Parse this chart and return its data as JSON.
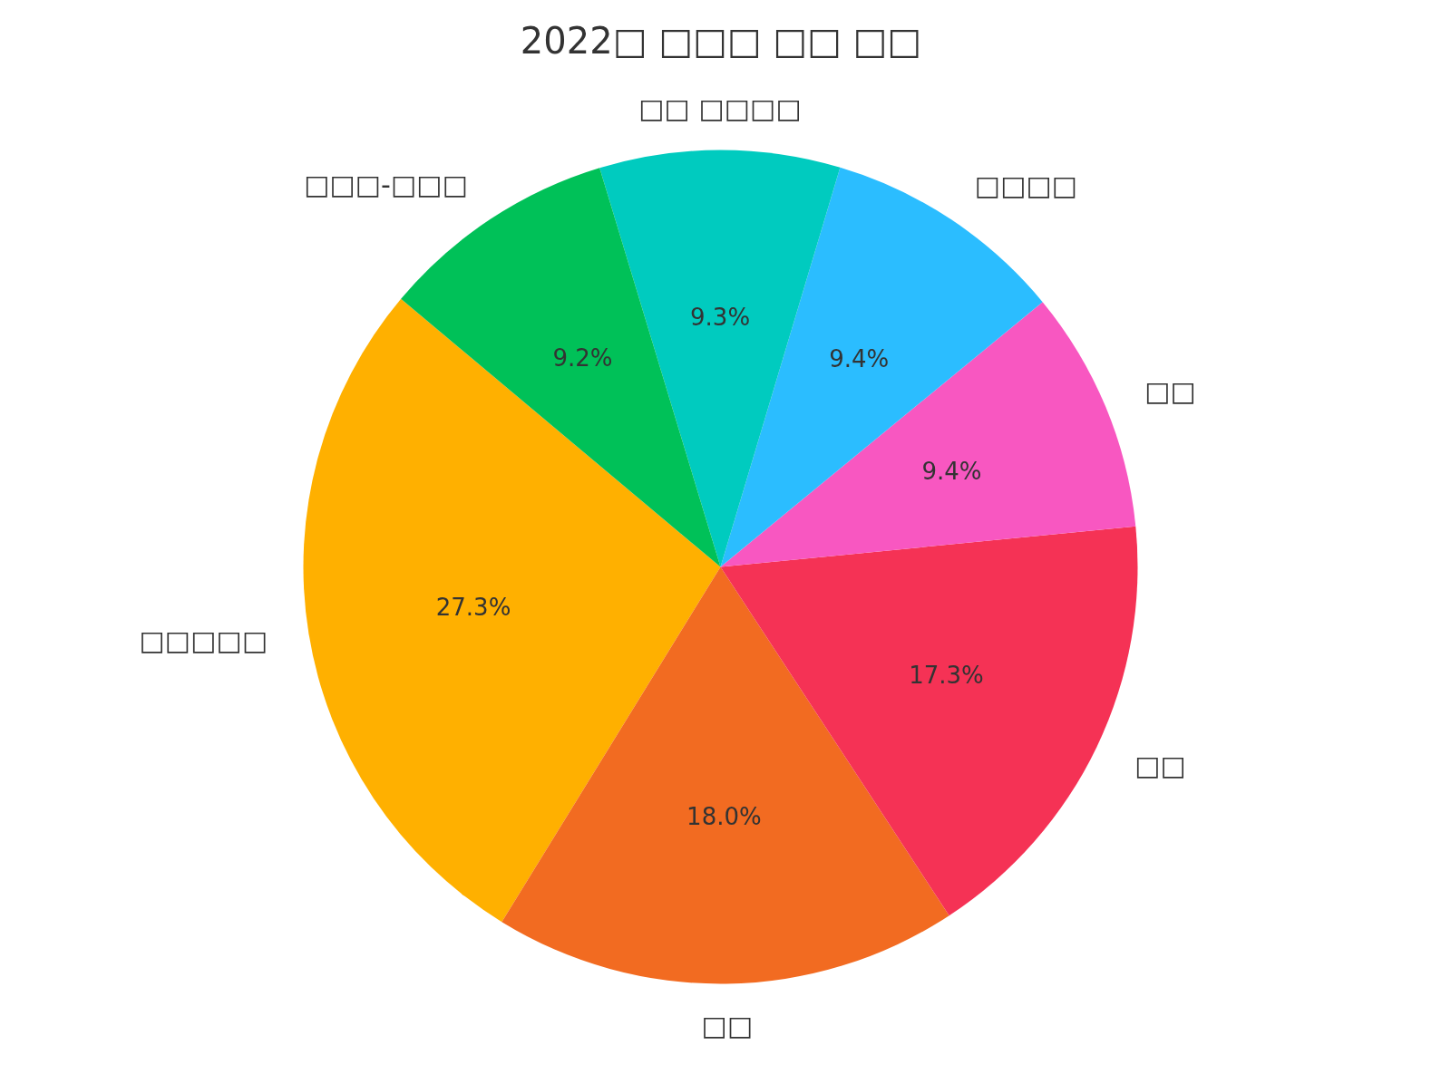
{
  "chart_data": {
    "type": "pie",
    "title": "2022□ □□□ □□ □□",
    "categories": [
      "□□□□□",
      "□□",
      "□□",
      "□□",
      "□□□□",
      "□□ □□□□",
      "□□□-□□□"
    ],
    "values": [
      27.3,
      18.0,
      17.3,
      9.4,
      9.4,
      9.3,
      9.2
    ],
    "colors": [
      "#ffb000",
      "#f26b21",
      "#f53255",
      "#f857c1",
      "#2bbdff",
      "#00cbbf",
      "#00c158"
    ],
    "value_labels": [
      "27.3%",
      "18.0%",
      "17.3%",
      "9.4%",
      "9.4%",
      "9.3%",
      "9.2%"
    ]
  }
}
